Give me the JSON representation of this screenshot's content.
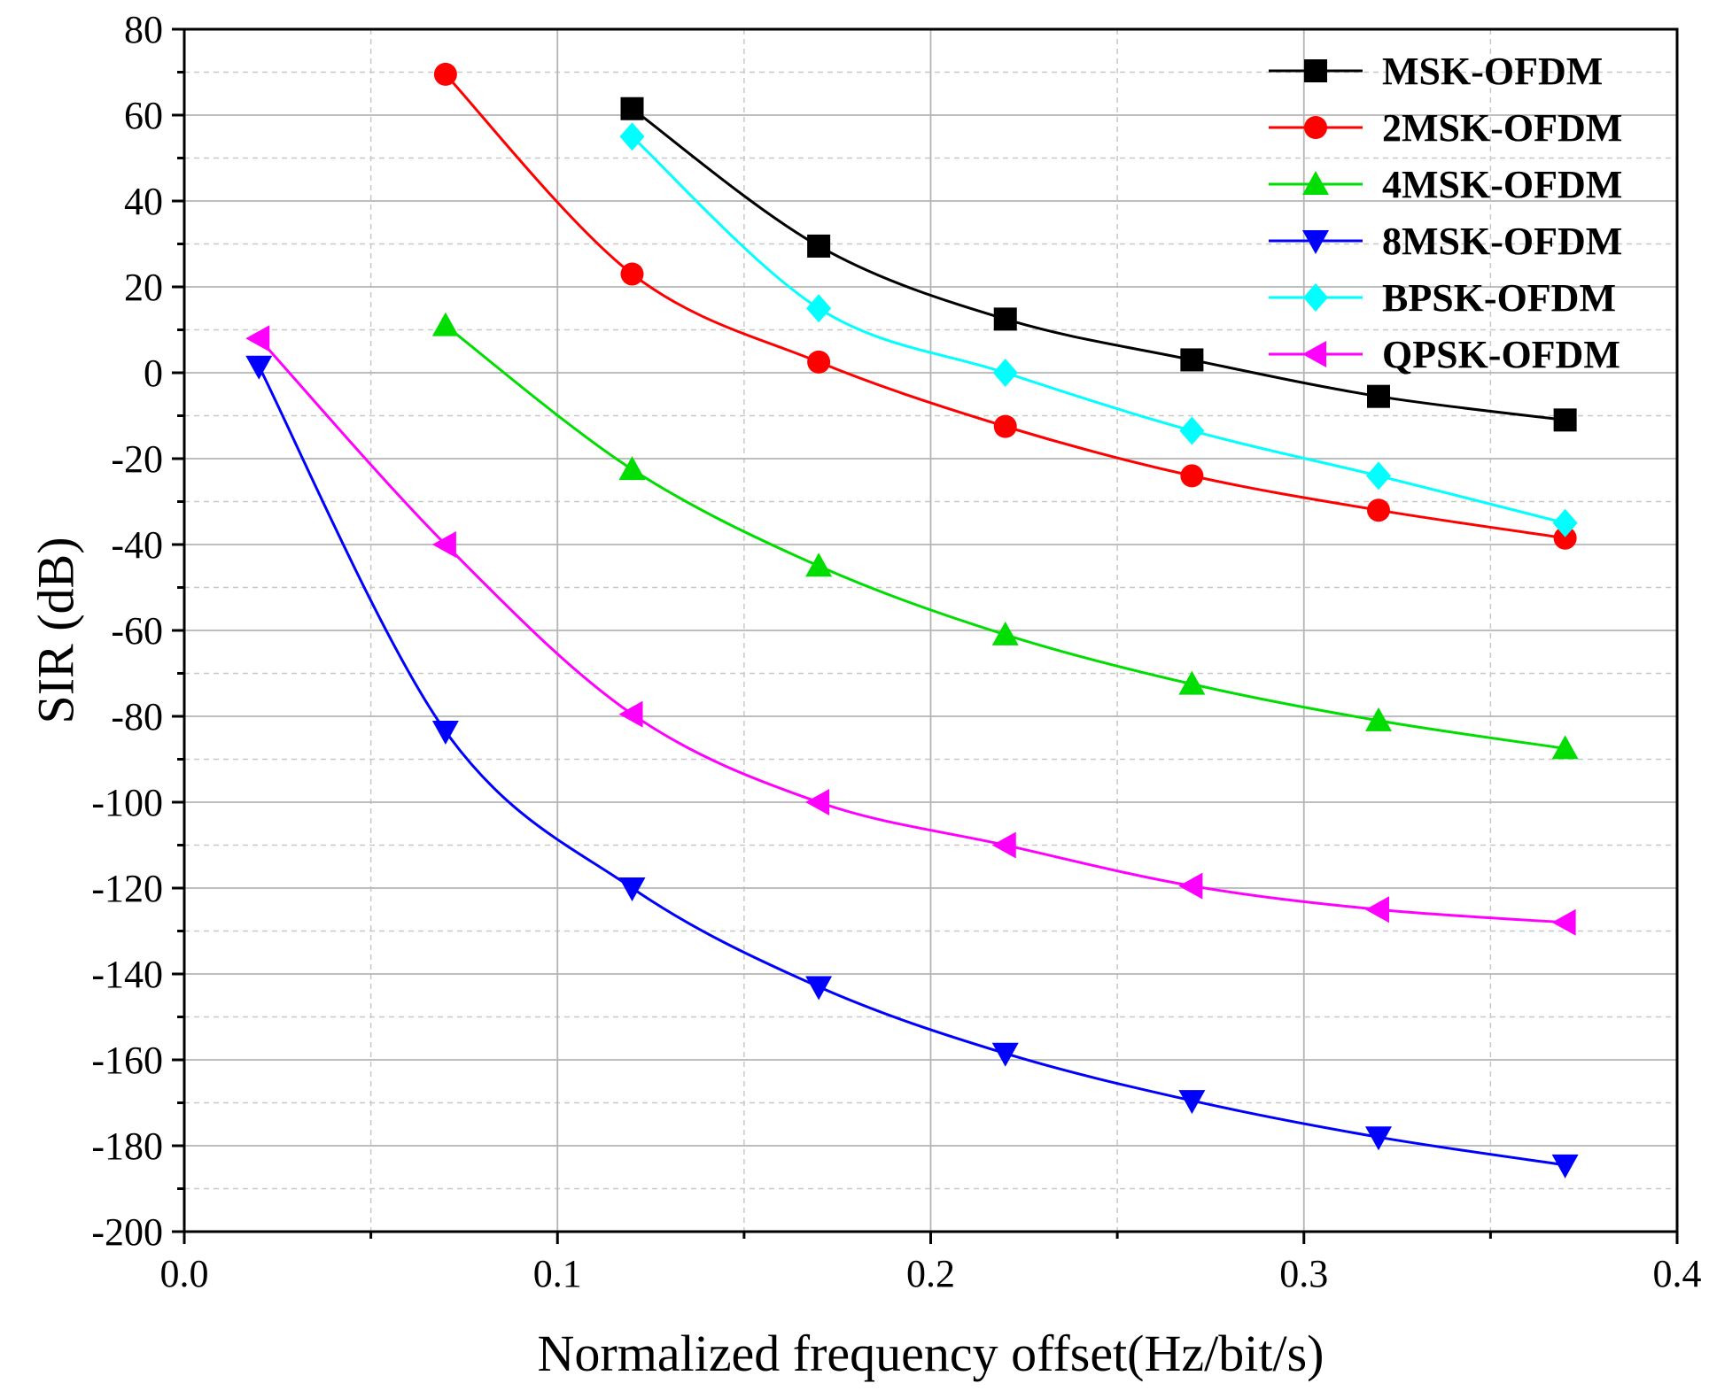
{
  "chart_data": {
    "type": "line",
    "xlabel": "Normalized frequency offset(Hz/bit/s)",
    "ylabel": "SIR (dB)",
    "xlim": [
      0.0,
      0.4
    ],
    "ylim": [
      -200,
      80
    ],
    "xticks": [
      0.0,
      0.1,
      0.2,
      0.3,
      0.4
    ],
    "xtick_labels": [
      "0.0",
      "0.1",
      "0.2",
      "0.3",
      "0.4"
    ],
    "yticks": [
      -200,
      -180,
      -160,
      -140,
      -120,
      -100,
      -80,
      -60,
      -40,
      -20,
      0,
      20,
      40,
      60,
      80
    ],
    "ytick_labels": [
      "-200",
      "-180",
      "-160",
      "-140",
      "-120",
      "-100",
      "-80",
      "-60",
      "-40",
      "-20",
      "0",
      "20",
      "40",
      "60",
      "80"
    ],
    "grid": true,
    "legend_position": "top-right",
    "series": [
      {
        "name": "MSK-OFDM",
        "color": "#000000",
        "marker": "square",
        "x": [
          0.12,
          0.17,
          0.22,
          0.27,
          0.32,
          0.37
        ],
        "y": [
          61.5,
          29.5,
          12.5,
          3,
          -5.5,
          -11
        ]
      },
      {
        "name": "2MSK-OFDM",
        "color": "#ff0000",
        "marker": "circle",
        "x": [
          0.07,
          0.12,
          0.17,
          0.22,
          0.27,
          0.32,
          0.37
        ],
        "y": [
          69.5,
          23,
          2.5,
          -12.5,
          -24,
          -32,
          -38.5
        ]
      },
      {
        "name": "4MSK-OFDM",
        "color": "#00dd00",
        "marker": "triangle-up",
        "x": [
          0.07,
          0.12,
          0.17,
          0.22,
          0.27,
          0.32,
          0.37
        ],
        "y": [
          11,
          -22.5,
          -45,
          -61,
          -72.5,
          -81,
          -87.5
        ]
      },
      {
        "name": "8MSK-OFDM",
        "color": "#0000ff",
        "marker": "triangle-down",
        "x": [
          0.02,
          0.07,
          0.12,
          0.17,
          0.22,
          0.27,
          0.32,
          0.37
        ],
        "y": [
          1.5,
          -83.5,
          -120,
          -143,
          -158.5,
          -169.5,
          -178,
          -184.5
        ]
      },
      {
        "name": "BPSK-OFDM",
        "color": "#00ffff",
        "marker": "diamond",
        "x": [
          0.12,
          0.17,
          0.22,
          0.27,
          0.32,
          0.37
        ],
        "y": [
          55,
          15,
          0,
          -13.5,
          -24,
          -35
        ]
      },
      {
        "name": "QPSK-OFDM",
        "color": "#ff00ff",
        "marker": "triangle-left",
        "x": [
          0.02,
          0.07,
          0.12,
          0.17,
          0.22,
          0.27,
          0.32,
          0.37
        ],
        "y": [
          8,
          -40,
          -79.5,
          -100,
          -110,
          -119.5,
          -125,
          -128
        ]
      }
    ]
  }
}
